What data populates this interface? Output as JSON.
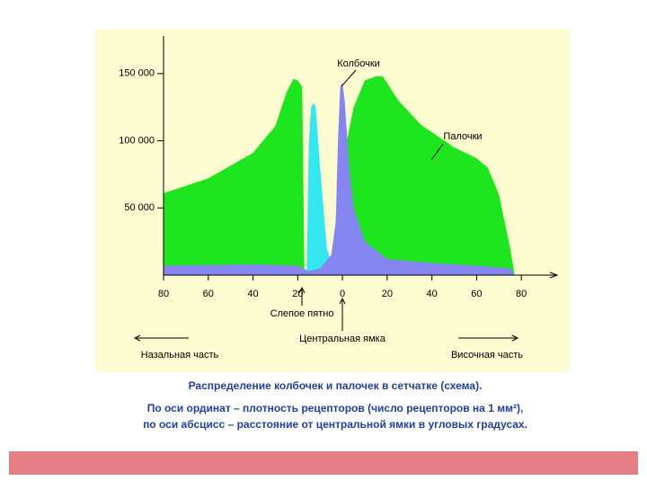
{
  "chart_data": {
    "type": "area",
    "xlim": [
      -80,
      96
    ],
    "ylim": [
      0,
      178000
    ],
    "xticks": [
      {
        "value": -80,
        "label": "80"
      },
      {
        "value": -60,
        "label": "60"
      },
      {
        "value": -40,
        "label": "40"
      },
      {
        "value": -20,
        "label": "20"
      },
      0,
      20,
      40,
      60,
      80
    ],
    "yticks": [
      {
        "value": 50000,
        "label": "50 000"
      },
      {
        "value": 100000,
        "label": "100 000"
      },
      {
        "value": 150000,
        "label": "150 000"
      }
    ],
    "series": [
      {
        "name": "Палочки",
        "color": "#1ee61e",
        "x": [
          -80,
          -60,
          -40,
          -30,
          -25,
          -22,
          -20,
          -18,
          -17,
          1,
          2,
          5,
          10,
          15,
          18,
          25,
          35,
          50,
          60,
          65,
          70,
          75,
          77
        ],
        "values": [
          61000,
          72000,
          91000,
          111000,
          136000,
          146000,
          145000,
          140000,
          0,
          0,
          100000,
          125000,
          145000,
          148000,
          148000,
          130000,
          112000,
          95000,
          87000,
          80000,
          60000,
          20000,
          0
        ]
      },
      {
        "color": "#33e6f0",
        "x": [
          -16,
          -15,
          -14,
          -13,
          -12,
          -10,
          -7,
          -4,
          -2,
          0
        ],
        "values": [
          0,
          100000,
          125000,
          128000,
          126000,
          80000,
          20000,
          5000,
          2000,
          0
        ]
      },
      {
        "name": "Колбочки",
        "color": "#8585f2",
        "x": [
          -80,
          -40,
          -20,
          -15,
          -10,
          -5,
          -3,
          -2,
          -1,
          0,
          1,
          3,
          5,
          10,
          20,
          40,
          60,
          75,
          77
        ],
        "values": [
          7000,
          8000,
          7000,
          3000,
          5000,
          15000,
          40000,
          100000,
          140000,
          143000,
          130000,
          80000,
          50000,
          25000,
          12000,
          9000,
          7000,
          5000,
          0
        ]
      }
    ],
    "annotations": [
      "Слепое пятно",
      "Центральная ямка",
      "Назальная часть",
      "Височная часть"
    ],
    "caption": [
      "Распределение колбочек и палочек в сетчатке (схема).",
      "По оси ординат – плотность рецепторов (число рецепторов на 1 мм²),",
      "по оси абсцисс – расстояние от центральной ямки в угловых градусах."
    ]
  }
}
